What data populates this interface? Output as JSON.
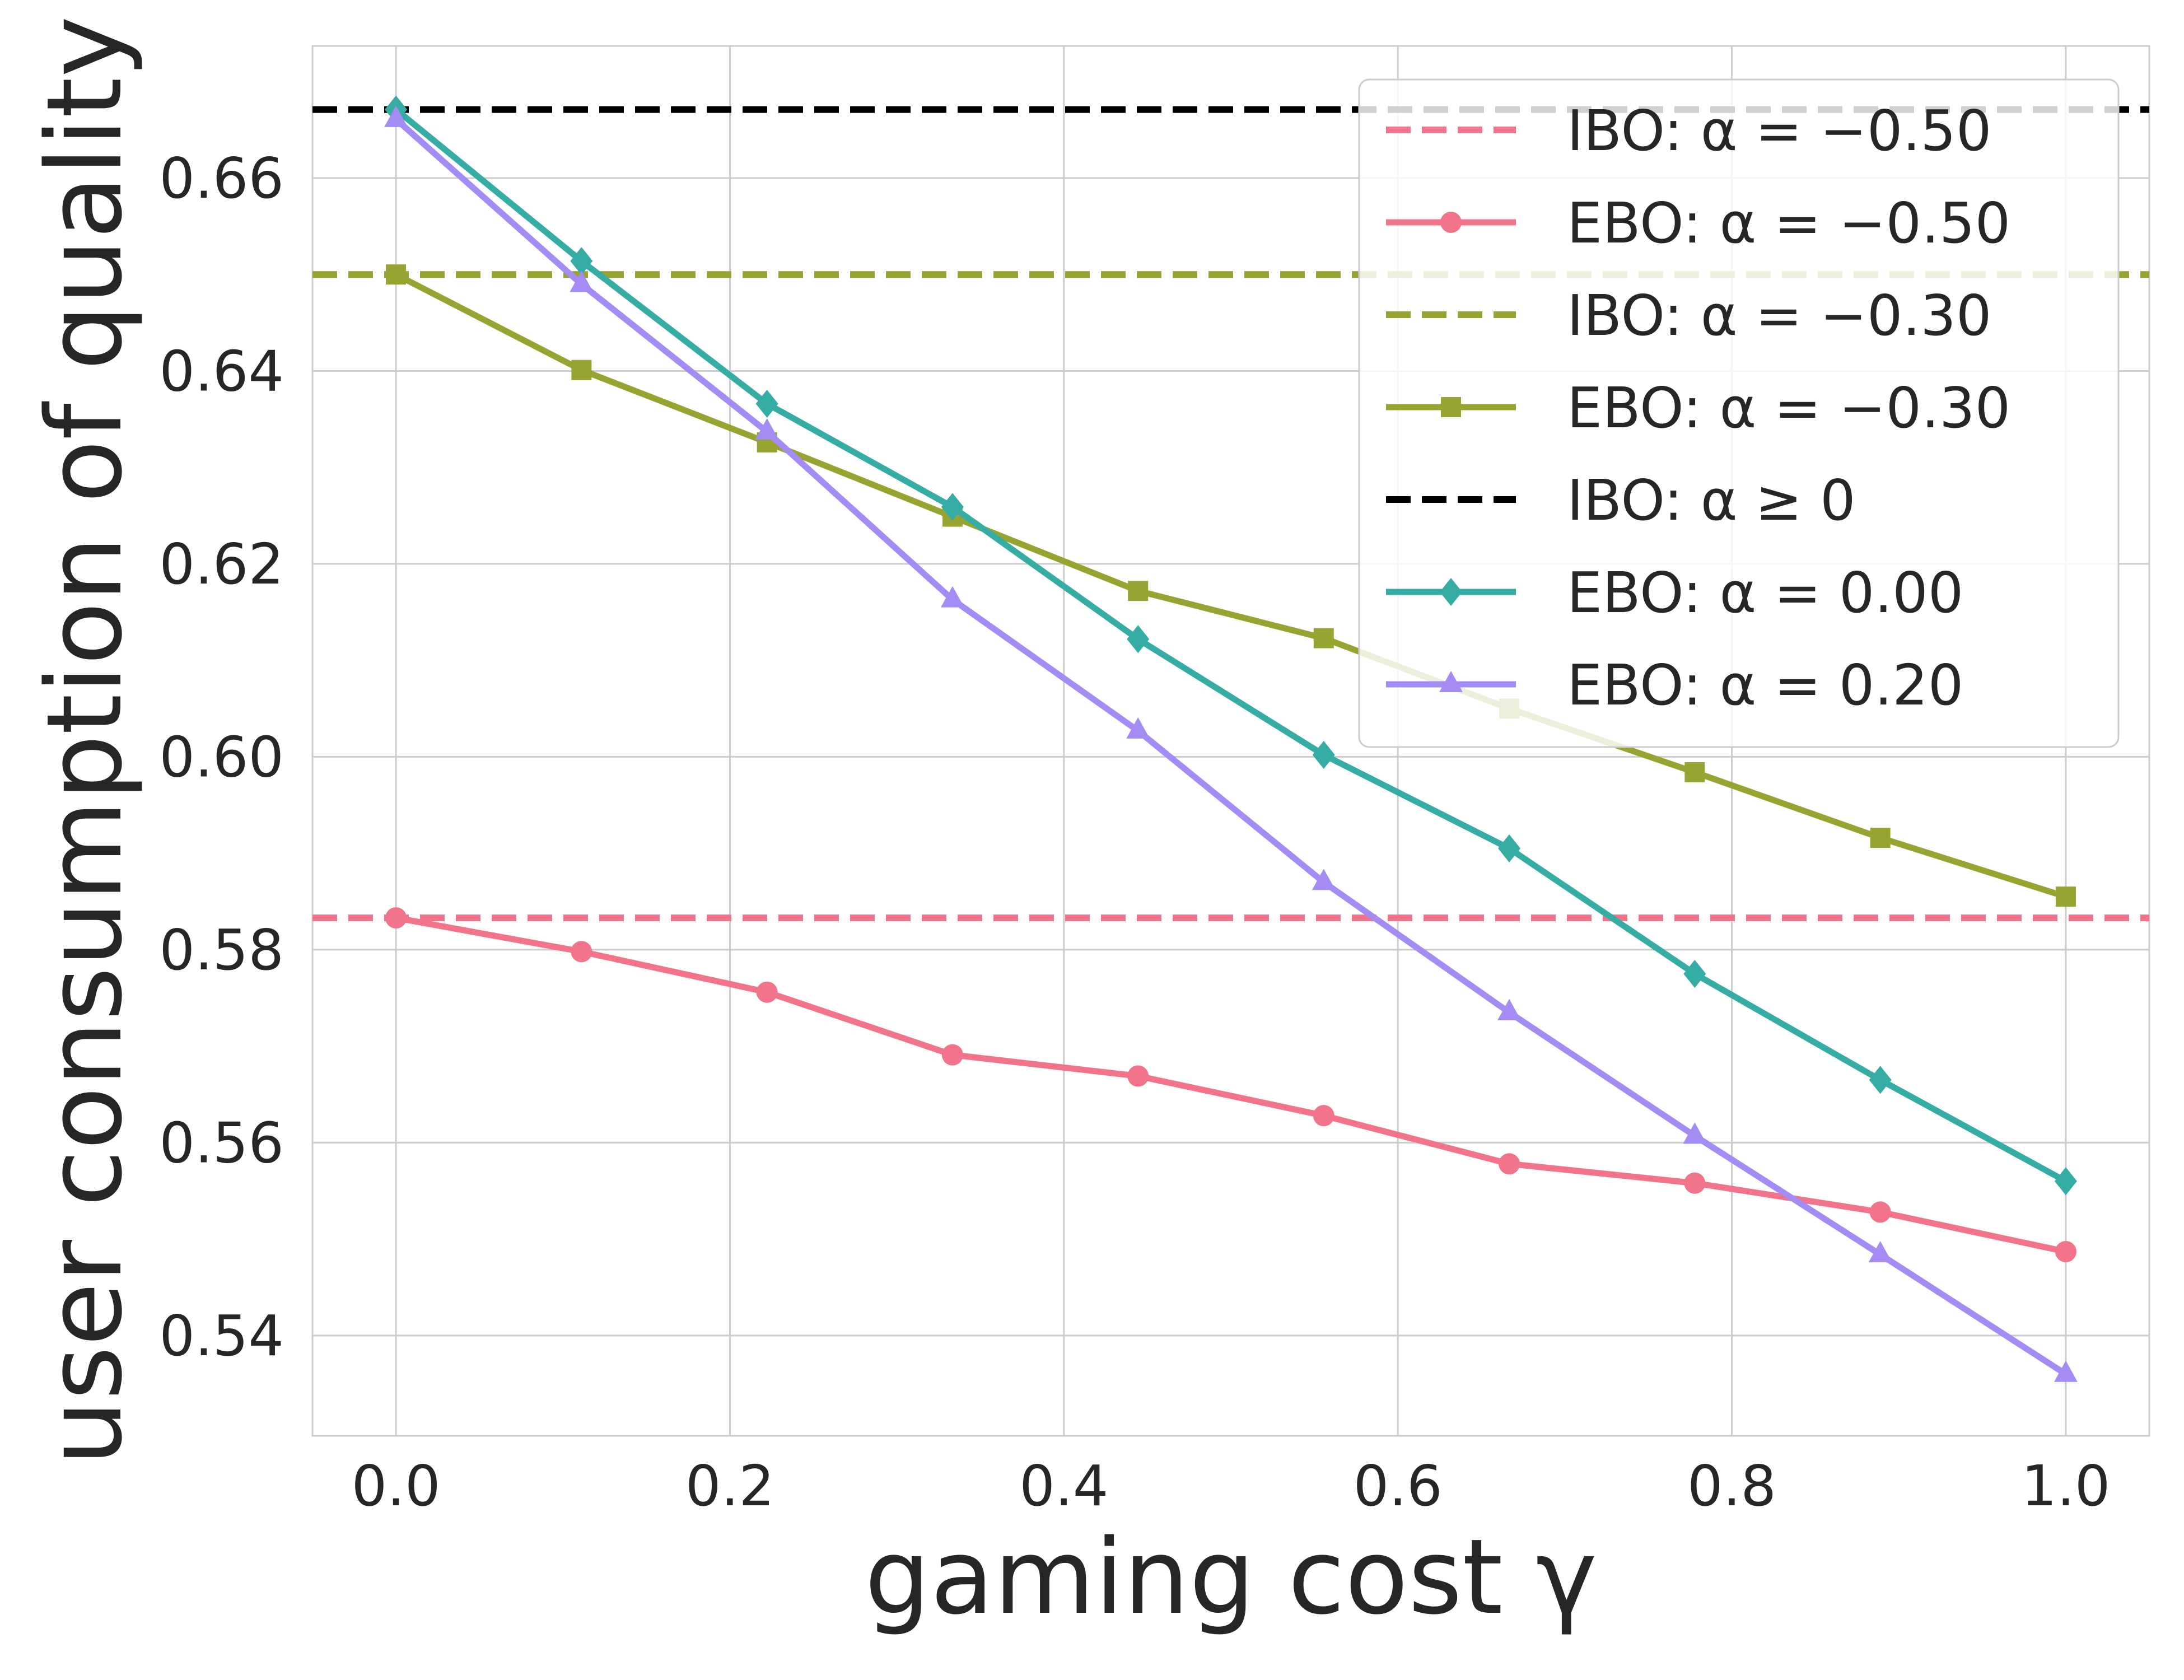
{
  "chart_data": {
    "type": "line",
    "title": "",
    "xlabel": "gaming cost γ",
    "ylabel": "user consumption of quality",
    "xlim": [
      -0.05,
      1.05
    ],
    "ylim": [
      0.5296,
      0.6737
    ],
    "grid": true,
    "legend_position": "top-right",
    "x": [
      0.0,
      0.1111,
      0.2222,
      0.3333,
      0.4444,
      0.5556,
      0.6667,
      0.7778,
      0.8889,
      1.0
    ],
    "x_ticks": [
      0.0,
      0.2,
      0.4,
      0.6,
      0.8,
      1.0
    ],
    "x_tick_labels": [
      "0.0",
      "0.2",
      "0.4",
      "0.6",
      "0.8",
      "1.0"
    ],
    "y_ticks": [
      0.54,
      0.56,
      0.58,
      0.6,
      0.62,
      0.64,
      0.66
    ],
    "y_tick_labels": [
      "0.54",
      "0.56",
      "0.58",
      "0.60",
      "0.62",
      "0.64",
      "0.66"
    ],
    "series": [
      {
        "name": "IBO: α = −0.50",
        "kind": "hline",
        "value": 0.5833,
        "color": "#f2748a",
        "marker": "none"
      },
      {
        "name": "EBO: α = −0.50",
        "kind": "line",
        "color": "#f2748a",
        "marker": "circle",
        "values": [
          0.5833,
          0.5798,
          0.5756,
          0.5691,
          0.5669,
          0.5628,
          0.5578,
          0.5558,
          0.5528,
          0.5487
        ]
      },
      {
        "name": "IBO: α = −0.30",
        "kind": "hline",
        "value": 0.65,
        "color": "#97a431",
        "marker": "none"
      },
      {
        "name": "EBO: α = −0.30",
        "kind": "line",
        "color": "#97a431",
        "marker": "square",
        "values": [
          0.65,
          0.6401,
          0.6326,
          0.6249,
          0.6172,
          0.6123,
          0.605,
          0.5984,
          0.5916,
          0.5855
        ]
      },
      {
        "name": "IBO: α ≥ 0",
        "kind": "hline",
        "value": 0.6671,
        "color": "#000000",
        "marker": "none"
      },
      {
        "name": "EBO: α = 0.00",
        "kind": "line",
        "color": "#36ada4",
        "marker": "diamond",
        "values": [
          0.6671,
          0.6514,
          0.6366,
          0.6259,
          0.6122,
          0.6002,
          0.5905,
          0.5775,
          0.5665,
          0.556
        ]
      },
      {
        "name": "EBO: α = 0.20",
        "kind": "line",
        "color": "#a48cf4",
        "marker": "triangle",
        "values": [
          0.6661,
          0.649,
          0.6337,
          0.6163,
          0.6027,
          0.587,
          0.5735,
          0.5607,
          0.5484,
          0.536
        ]
      }
    ]
  }
}
